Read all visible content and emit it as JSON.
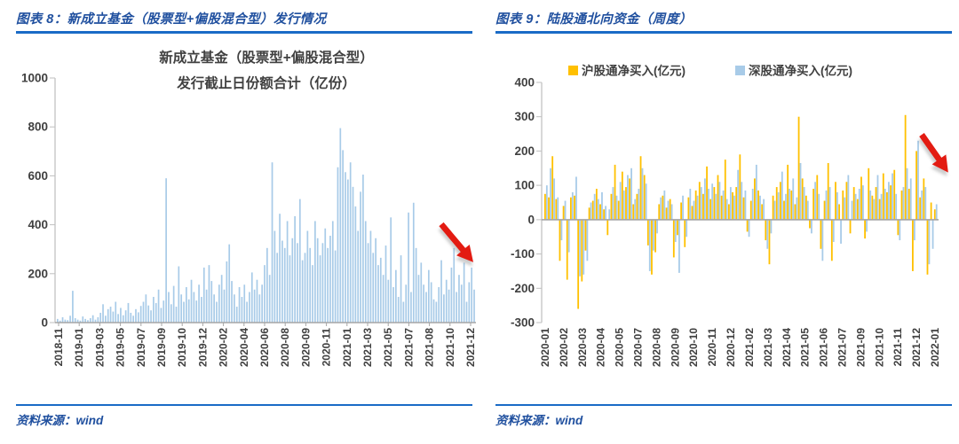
{
  "panels": [
    {
      "header": "图表 8：新成立基金（股票型+偏股混合型）发行情况",
      "source": "资料来源：wind"
    },
    {
      "header": "图表 9：陆股通北向资金（周度）",
      "source": "资料来源：wind"
    }
  ],
  "colors": {
    "header_blue": "#20509F",
    "rule_blue": "#1A6BC6",
    "bar_light_blue": "#A8CBE8",
    "bar_yellow": "#FFC000",
    "arrow_red": "#E31B12",
    "axis_gray": "#A6A6A6",
    "tick_gray": "#BFBFBF",
    "text_gray": "#404040"
  },
  "chart_data": [
    {
      "type": "bar",
      "title": "新成立基金（股票型+偏股混合型）发行截止日份额合计（亿份）",
      "title_lines": [
        "新成立基金（股票型+偏股混合型）",
        "发行截止日份额合计（亿份）"
      ],
      "xlabel": "",
      "ylabel": "",
      "ylim": [
        0,
        1000
      ],
      "yticks": [
        0,
        200,
        400,
        600,
        800,
        1000
      ],
      "grid": false,
      "frequency": "weekly",
      "bar_color": "#A8CBE8",
      "annotation": "red arrow pointing down-right near 2021-12",
      "xlabels": [
        "2018-11",
        "2019-01",
        "2019-03",
        "2019-05",
        "2019-07",
        "2019-09",
        "2019-10",
        "2019-12",
        "2020-02",
        "2020-04",
        "2020-06",
        "2020-08",
        "2020-09",
        "2020-11",
        "2021-01",
        "2021-03",
        "2021-05",
        "2021-07",
        "2021-08",
        "2021-10",
        "2021-12"
      ],
      "values": [
        15,
        8,
        22,
        12,
        10,
        28,
        130,
        18,
        12,
        8,
        25,
        15,
        10,
        18,
        30,
        12,
        22,
        40,
        75,
        28,
        55,
        65,
        45,
        85,
        35,
        60,
        30,
        50,
        80,
        40,
        28,
        55,
        42,
        68,
        85,
        115,
        70,
        50,
        105,
        80,
        135,
        60,
        90,
        590,
        125,
        75,
        150,
        65,
        230,
        115,
        85,
        145,
        95,
        175,
        125,
        90,
        155,
        105,
        225,
        135,
        235,
        170,
        115,
        85,
        155,
        195,
        135,
        250,
        320,
        170,
        115,
        65,
        145,
        105,
        155,
        85,
        125,
        205,
        135,
        175,
        115,
        155,
        235,
        305,
        195,
        655,
        375,
        285,
        445,
        335,
        305,
        415,
        275,
        345,
        435,
        325,
        505,
        255,
        285,
        375,
        305,
        235,
        415,
        345,
        275,
        325,
        385,
        305,
        355,
        415,
        295,
        635,
        795,
        705,
        615,
        585,
        655,
        555,
        475,
        375,
        535,
        605,
        415,
        325,
        375,
        285,
        345,
        235,
        265,
        195,
        315,
        175,
        430,
        145,
        215,
        105,
        275,
        85,
        155,
        450,
        125,
        490,
        305,
        195,
        245,
        155,
        125,
        215,
        165,
        95,
        85,
        145,
        255,
        115,
        175,
        135,
        225,
        305,
        125,
        195,
        155,
        245,
        85,
        165,
        225,
        135
      ]
    },
    {
      "type": "bar",
      "title": "陆股通北向资金（周度）",
      "xlabel": "",
      "ylabel": "",
      "ylim": [
        -300,
        400
      ],
      "yticks": [
        400,
        300,
        200,
        100,
        0,
        -100,
        -200,
        -300
      ],
      "grid": false,
      "frequency": "weekly",
      "legend_position": "top",
      "annotation": "red arrow pointing down-right near 2022-01",
      "xlabels": [
        "2020-01",
        "2020-02",
        "2020-03",
        "2020-04",
        "2020-05",
        "2020-07",
        "2020-08",
        "2020-09",
        "2020-10",
        "2020-11",
        "2020-12",
        "2021-02",
        "2021-03",
        "2021-04",
        "2021-05",
        "2021-06",
        "2021-07",
        "2021-09",
        "2021-10",
        "2021-11",
        "2021-12",
        "2022-01"
      ],
      "series": [
        {
          "name": "沪股通净买入(亿元)",
          "color": "#FFC000",
          "values": [
            75,
            65,
            185,
            60,
            -120,
            40,
            -175,
            65,
            70,
            -260,
            -180,
            -90,
            35,
            55,
            90,
            45,
            30,
            -45,
            75,
            160,
            55,
            140,
            95,
            120,
            45,
            75,
            185,
            130,
            -75,
            -160,
            -95,
            45,
            70,
            35,
            60,
            -110,
            -45,
            50,
            -80,
            65,
            40,
            85,
            110,
            75,
            155,
            60,
            95,
            130,
            70,
            175,
            45,
            80,
            95,
            190,
            65,
            -35,
            55,
            120,
            85,
            45,
            -60,
            -130,
            70,
            95,
            110,
            55,
            160,
            85,
            45,
            300,
            120,
            70,
            -25,
            90,
            130,
            -85,
            55,
            165,
            -120,
            110,
            45,
            85,
            110,
            -40,
            95,
            60,
            125,
            -55,
            150,
            70,
            95,
            60,
            135,
            80,
            100,
            145,
            -45,
            85,
            305,
            90,
            -150,
            200,
            65,
            120,
            -160,
            50,
            30
          ]
        },
        {
          "name": "深股通净买入(亿元)",
          "color": "#A8CBE8",
          "values": [
            100,
            150,
            120,
            65,
            -60,
            55,
            -95,
            80,
            125,
            -165,
            -160,
            -120,
            50,
            75,
            60,
            80,
            40,
            30,
            95,
            70,
            110,
            85,
            130,
            150,
            60,
            90,
            150,
            105,
            -150,
            -90,
            -40,
            65,
            85,
            55,
            45,
            -65,
            -155,
            70,
            -50,
            90,
            55,
            70,
            95,
            120,
            90,
            105,
            75,
            110,
            85,
            60,
            95,
            70,
            145,
            110,
            85,
            -50,
            90,
            160,
            70,
            60,
            -85,
            -40,
            55,
            80,
            140,
            75,
            90,
            120,
            65,
            165,
            95,
            55,
            -40,
            110,
            75,
            -120,
            85,
            95,
            -65,
            80,
            -70,
            65,
            130,
            55,
            75,
            90,
            100,
            -35,
            85,
            60,
            130,
            75,
            90,
            110,
            135,
            75,
            -60,
            95,
            150,
            120,
            -60,
            230,
            85,
            95,
            -130,
            -85,
            45
          ]
        }
      ]
    }
  ]
}
